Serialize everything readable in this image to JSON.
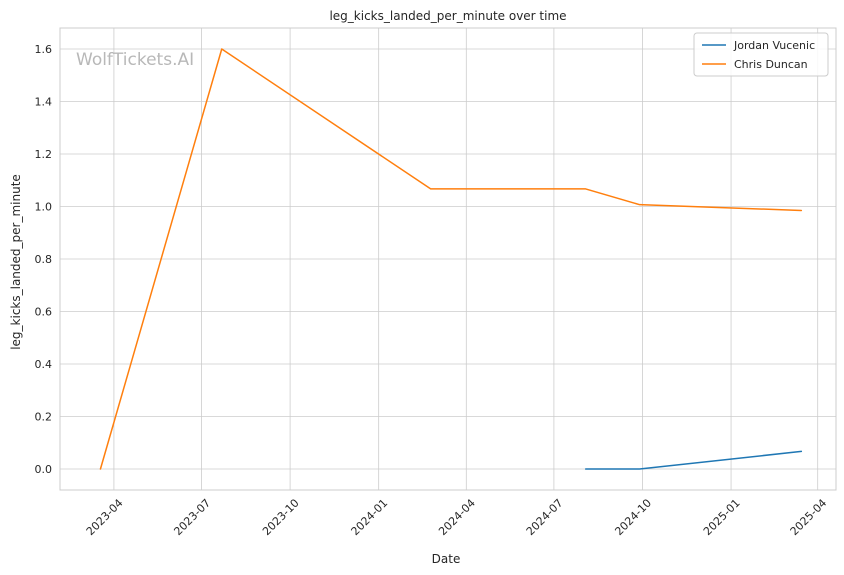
{
  "chart_data": {
    "type": "line",
    "title": "leg_kicks_landed_per_minute over time",
    "xlabel": "Date",
    "ylabel": "leg_kicks_landed_per_minute",
    "watermark": "WolfTickets.AI",
    "x_ticks": [
      "2023-04",
      "2023-07",
      "2023-10",
      "2024-01",
      "2024-04",
      "2024-07",
      "2024-10",
      "2025-01",
      "2025-04"
    ],
    "y_ticks": [
      "0.0",
      "0.2",
      "0.4",
      "0.6",
      "0.8",
      "1.0",
      "1.2",
      "1.4",
      "1.6"
    ],
    "xlim": [
      "2023-02-04",
      "2025-04-20"
    ],
    "ylim": [
      -0.08,
      1.68
    ],
    "grid": true,
    "legend_position": "top-right",
    "series": [
      {
        "name": "Jordan Vucenic",
        "color": "#1f77b4",
        "points": [
          {
            "x": "2024-08-03",
            "y": 0.0
          },
          {
            "x": "2024-09-28",
            "y": 0.0
          },
          {
            "x": "2025-03-15",
            "y": 0.067
          }
        ]
      },
      {
        "name": "Chris Duncan",
        "color": "#ff7f0e",
        "points": [
          {
            "x": "2023-03-18",
            "y": 0.0
          },
          {
            "x": "2023-07-22",
            "y": 1.6
          },
          {
            "x": "2024-02-24",
            "y": 1.067
          },
          {
            "x": "2024-08-03",
            "y": 1.067
          },
          {
            "x": "2024-09-28",
            "y": 1.007
          },
          {
            "x": "2025-03-15",
            "y": 0.985
          }
        ]
      }
    ]
  }
}
